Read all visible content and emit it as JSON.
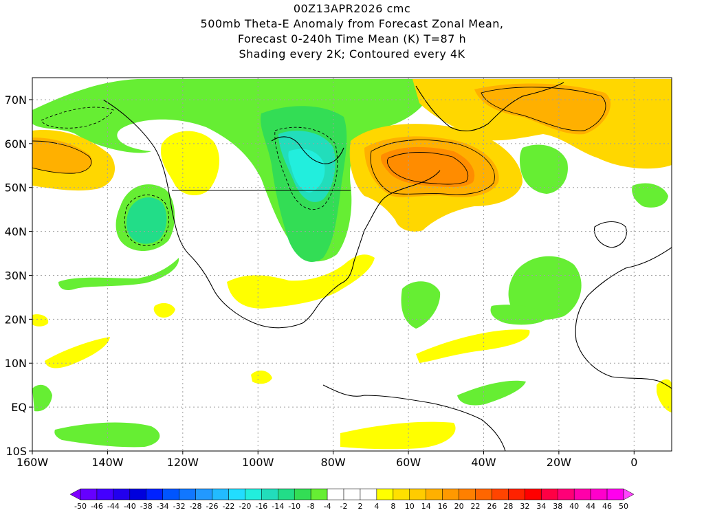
{
  "header": {
    "lines": [
      "00Z13APR2026 cmc",
      "500mb Theta-E Anomaly from Forecast Zonal Mean,",
      "Forecast 0-240h Time Mean (K) T=87 h",
      "Shading every 2K; Contoured every 4K"
    ]
  },
  "map": {
    "lon_range": [
      -160,
      10
    ],
    "lat_range": [
      -10,
      75
    ],
    "lat_ticks": [
      {
        "lat": 70,
        "label": "70N"
      },
      {
        "lat": 60,
        "label": "60N"
      },
      {
        "lat": 50,
        "label": "50N"
      },
      {
        "lat": 40,
        "label": "40N"
      },
      {
        "lat": 30,
        "label": "30N"
      },
      {
        "lat": 20,
        "label": "20N"
      },
      {
        "lat": 10,
        "label": "10N"
      },
      {
        "lat": 0,
        "label": "EQ"
      },
      {
        "lat": -10,
        "label": "10S"
      }
    ],
    "lon_ticks": [
      {
        "lon": -160,
        "label": "160W"
      },
      {
        "lon": -140,
        "label": "140W"
      },
      {
        "lon": -120,
        "label": "120W"
      },
      {
        "lon": -100,
        "label": "100W"
      },
      {
        "lon": -80,
        "label": "80W"
      },
      {
        "lon": -60,
        "label": "60W"
      },
      {
        "lon": -40,
        "label": "40W"
      },
      {
        "lon": -20,
        "label": "20W"
      },
      {
        "lon": 0,
        "label": "0"
      }
    ],
    "gridlines": "dotted",
    "colors": {
      "coastline": "#000000",
      "grid": "#a0a0a0",
      "positive_2_4": "#ffff00",
      "positive_4_8": "#ffd700",
      "positive_8_10": "#ffb000",
      "positive_10_14": "#ff8c00",
      "positive_14_16": "#ff6000",
      "negative_2_4": "#66ee33",
      "negative_4_8": "#33dd55",
      "negative_8_10": "#22dd88",
      "negative_10_14": "#22ddbb",
      "negative_14_16": "#22eedd"
    }
  },
  "legend": {
    "labels": [
      "-50",
      "-46",
      "-44",
      "-40",
      "-38",
      "-34",
      "-32",
      "-28",
      "-26",
      "-22",
      "-20",
      "-16",
      "-14",
      "-10",
      "-8",
      "-4",
      "-2",
      "2",
      "4",
      "8",
      "10",
      "14",
      "16",
      "20",
      "22",
      "26",
      "28",
      "32",
      "34",
      "38",
      "40",
      "44",
      "46",
      "50"
    ],
    "colors": [
      "#7f00ff",
      "#6600ff",
      "#4400ff",
      "#2200ee",
      "#0000dd",
      "#0022ff",
      "#0055ff",
      "#1177ff",
      "#2299ff",
      "#22bbff",
      "#22ddff",
      "#22eedd",
      "#22ddbb",
      "#22dd88",
      "#33dd55",
      "#66ee33",
      "#ffffff",
      "#ffffff",
      "#ffffff",
      "#ffff00",
      "#ffe000",
      "#ffcc00",
      "#ffb000",
      "#ff9900",
      "#ff8000",
      "#ff6600",
      "#ff4400",
      "#ff2200",
      "#ff0000",
      "#ff0044",
      "#ff0077",
      "#ff00aa",
      "#ff00cc",
      "#ff00ee",
      "#ff44ff"
    ]
  }
}
